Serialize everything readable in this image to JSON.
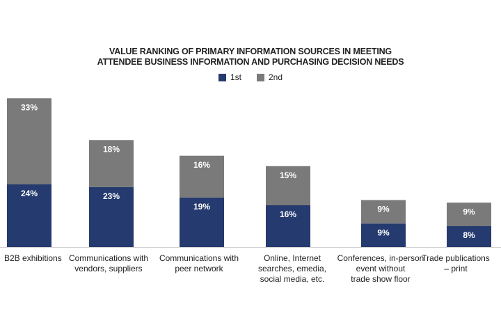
{
  "title_line1": "VALUE RANKING OF PRIMARY INFORMATION SOURCES IN  MEETING",
  "title_line2": "ATTENDEE BUSINESS INFORMATION AND PURCHASING DECISION NEEDS",
  "legend": [
    {
      "label": "1st",
      "color": "#253a6e"
    },
    {
      "label": "2nd",
      "color": "#7a7a7a"
    }
  ],
  "chart_data": {
    "type": "bar",
    "stacked": true,
    "title": "VALUE RANKING OF PRIMARY INFORMATION SOURCES IN  MEETING ATTENDEE BUSINESS INFORMATION AND PURCHASING DECISION NEEDS",
    "categories": [
      "B2B exhibitions",
      "Communications with vendors, suppliers",
      "Communications with peer network",
      "Online, Internet searches, emedia, social media, etc.",
      "Conferences, in-person event without trade show floor",
      "Trade publications – print"
    ],
    "category_lines": [
      [
        "B2B exhibitions"
      ],
      [
        "Communications with",
        "vendors, suppliers"
      ],
      [
        "Communications with",
        "peer network"
      ],
      [
        "Online, Internet",
        "searches, emedia,",
        "social media, etc."
      ],
      [
        "Conferences, in-person",
        "event without",
        "trade show floor"
      ],
      [
        "Trade publications",
        "– print"
      ]
    ],
    "series": [
      {
        "name": "1st",
        "values": [
          24,
          23,
          19,
          16,
          9,
          8
        ],
        "labels": [
          "24%",
          "23%",
          "19%",
          "16%",
          "9%",
          "8%"
        ],
        "color": "#253a6e"
      },
      {
        "name": "2nd",
        "values": [
          33,
          18,
          16,
          15,
          9,
          9
        ],
        "labels": [
          "33%",
          "18%",
          "16%",
          "15%",
          "9%",
          "9%"
        ],
        "color": "#7a7a7a"
      }
    ],
    "ylim": [
      0,
      57
    ],
    "grid": false,
    "legend_position": "top-center",
    "xlabel": "",
    "ylabel": ""
  }
}
